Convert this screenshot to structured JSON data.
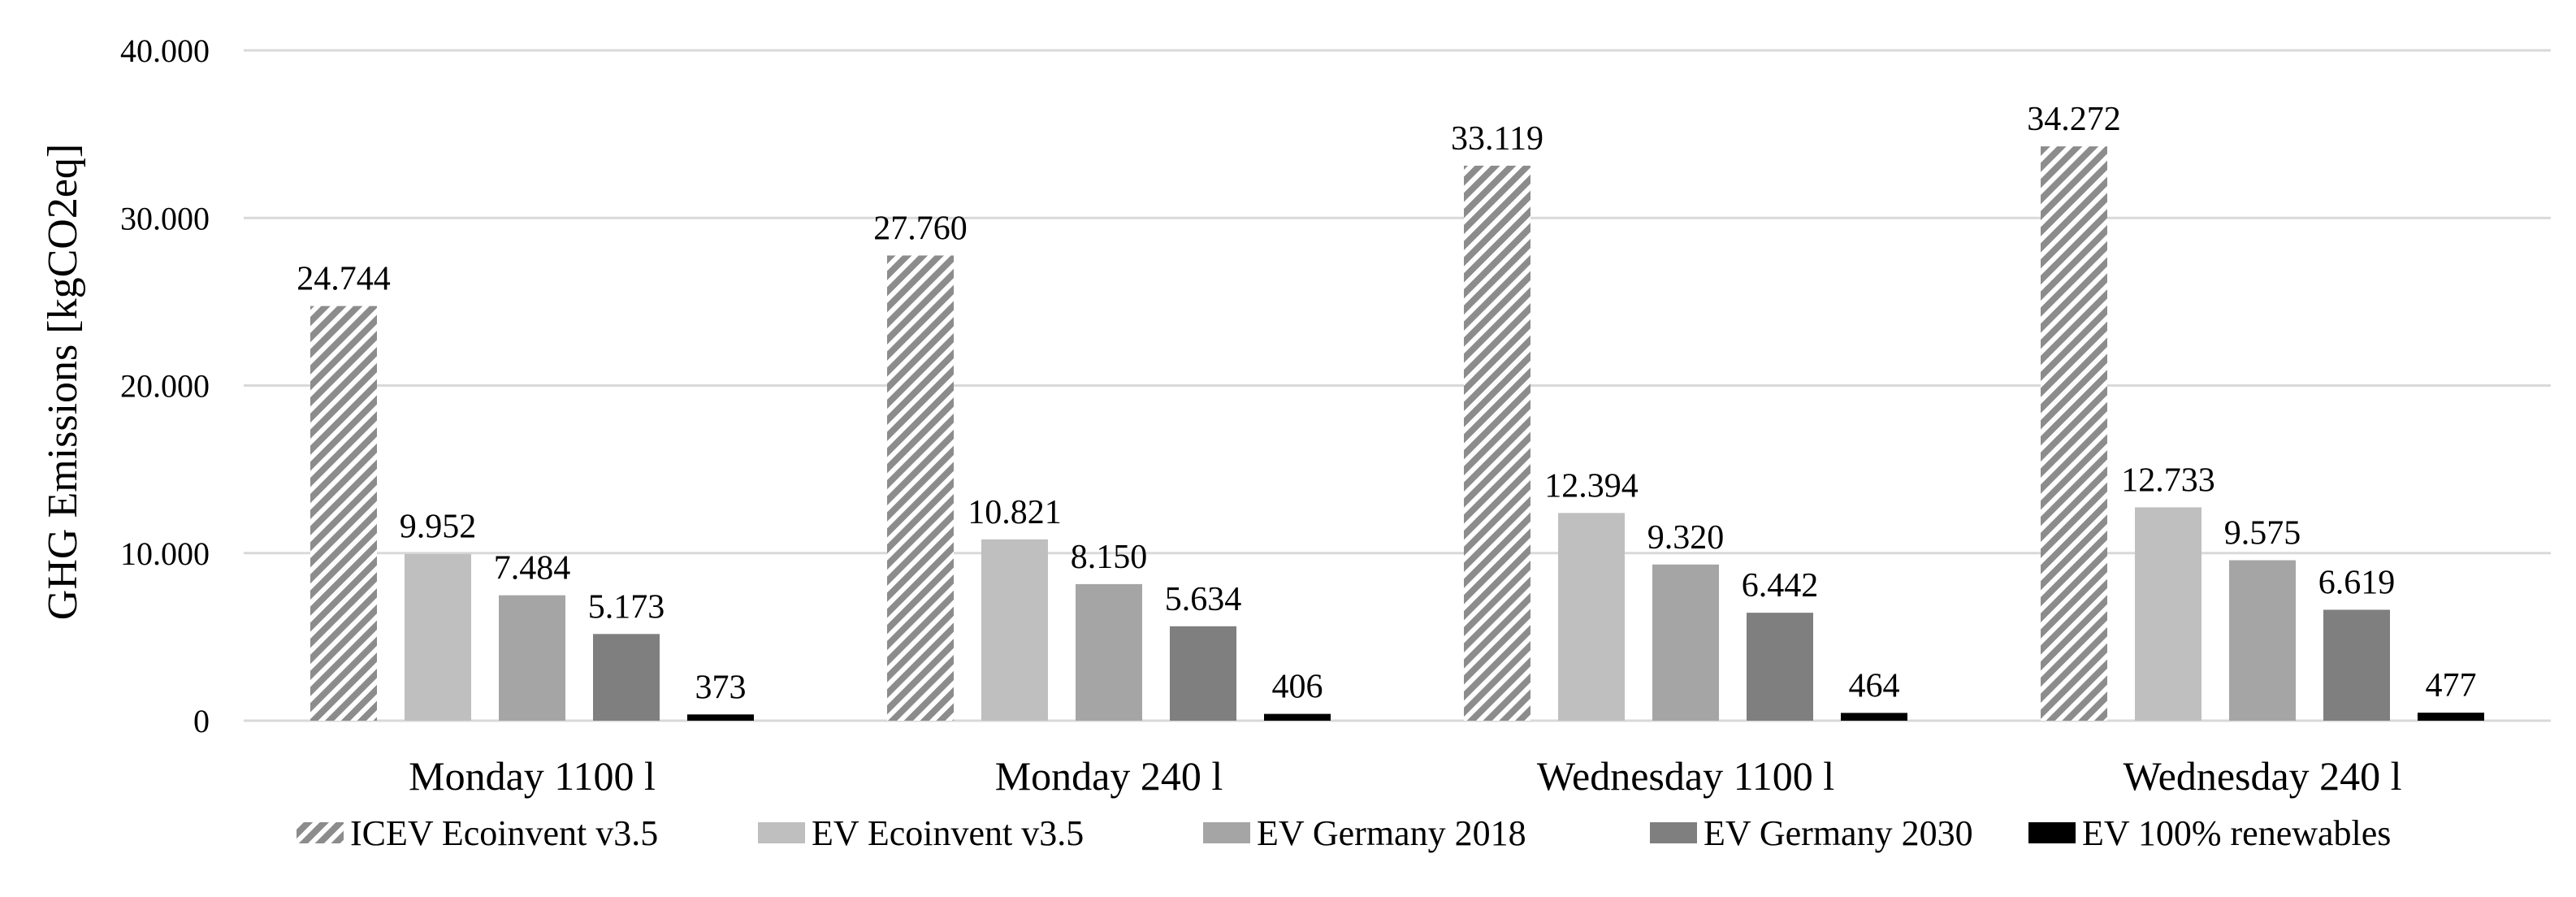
{
  "chart_data": {
    "type": "bar",
    "title": "",
    "xlabel": "",
    "ylabel": "GHG Emissions [kgCO2eq]",
    "ylim": [
      0,
      40000
    ],
    "yticks": [
      0,
      10000,
      20000,
      30000,
      40000
    ],
    "ytick_labels": [
      "0",
      "10.000",
      "20.000",
      "30.000",
      "40.000"
    ],
    "grid": true,
    "legend_position": "bottom",
    "categories": [
      "Monday 1100 l",
      "Monday 240 l",
      "Wednesday 1100 l",
      "Wednesday 240 l"
    ],
    "series": [
      {
        "name": "ICEV Ecoinvent v3.5",
        "color": "#8c8c8c",
        "pattern": "hatched",
        "values": [
          24744,
          27760,
          33119,
          34272
        ],
        "labels": [
          "24.744",
          "27.760",
          "33.119",
          "34.272"
        ]
      },
      {
        "name": "EV Ecoinvent v3.5",
        "color": "#bfbfbf",
        "pattern": "solid",
        "values": [
          9952,
          10821,
          12394,
          12733
        ],
        "labels": [
          "9.952",
          "10.821",
          "12.394",
          "12.733"
        ]
      },
      {
        "name": "EV Germany 2018",
        "color": "#a5a5a5",
        "pattern": "solid",
        "values": [
          7484,
          8150,
          9320,
          9575
        ],
        "labels": [
          "7.484",
          "8.150",
          "9.320",
          "9.575"
        ]
      },
      {
        "name": "EV Germany 2030",
        "color": "#7f7f7f",
        "pattern": "solid",
        "values": [
          5173,
          5634,
          6442,
          6619
        ],
        "labels": [
          "5.173",
          "5.634",
          "6.442",
          "6.619"
        ]
      },
      {
        "name": "EV 100% renewables",
        "color": "#000000",
        "pattern": "solid",
        "values": [
          373,
          406,
          464,
          477
        ],
        "labels": [
          "373",
          "406",
          "464",
          "477"
        ]
      }
    ]
  }
}
